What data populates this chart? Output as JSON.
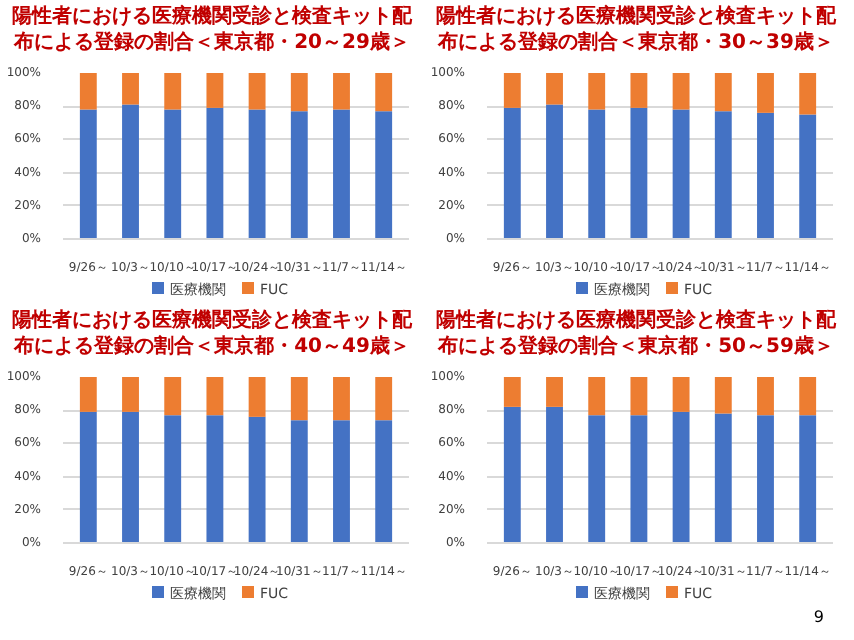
{
  "chart_data": [
    {
      "type": "bar",
      "title": "陽性者における医療機関受診と検査キット配布による登録の割合＜東京都・20～29歳＞",
      "stacked": true,
      "categories": [
        "9/26～",
        "10/3～",
        "10/10～",
        "10/17～",
        "10/24～",
        "10/31～",
        "11/7～",
        "11/14～"
      ],
      "series": [
        {
          "name": "医療機関",
          "color": "#4472c4",
          "values": [
            78,
            81,
            78,
            79,
            78,
            77,
            78,
            77
          ]
        },
        {
          "name": "FUC",
          "color": "#ed7d31",
          "values": [
            22,
            19,
            22,
            21,
            22,
            23,
            22,
            23
          ]
        }
      ],
      "ylim": [
        0,
        100
      ],
      "yticks": [
        {
          "value": 0,
          "label": "0%"
        },
        {
          "value": 20,
          "label": "20%"
        },
        {
          "value": 40,
          "label": "40%"
        },
        {
          "value": 60,
          "label": "60%"
        },
        {
          "value": 80,
          "label": "80%"
        },
        {
          "value": 100,
          "label": "100%"
        }
      ],
      "grid": "y",
      "legend": "bottom"
    },
    {
      "type": "bar",
      "title": "陽性者における医療機関受診と検査キット配布による登録の割合＜東京都・30～39歳＞",
      "stacked": true,
      "categories": [
        "9/26～",
        "10/3～",
        "10/10～",
        "10/17～",
        "10/24～",
        "10/31～",
        "11/7～",
        "11/14～"
      ],
      "series": [
        {
          "name": "医療機関",
          "color": "#4472c4",
          "values": [
            79,
            81,
            78,
            79,
            78,
            77,
            76,
            75
          ]
        },
        {
          "name": "FUC",
          "color": "#ed7d31",
          "values": [
            21,
            19,
            22,
            21,
            22,
            23,
            24,
            25
          ]
        }
      ],
      "ylim": [
        0,
        100
      ],
      "yticks": [
        {
          "value": 0,
          "label": "0%"
        },
        {
          "value": 20,
          "label": "20%"
        },
        {
          "value": 40,
          "label": "40%"
        },
        {
          "value": 60,
          "label": "60%"
        },
        {
          "value": 80,
          "label": "80%"
        },
        {
          "value": 100,
          "label": "100%"
        }
      ],
      "grid": "y",
      "legend": "bottom"
    },
    {
      "type": "bar",
      "title": "陽性者における医療機関受診と検査キット配布による登録の割合＜東京都・40～49歳＞",
      "stacked": true,
      "categories": [
        "9/26～",
        "10/3～",
        "10/10～",
        "10/17～",
        "10/24～",
        "10/31～",
        "11/7～",
        "11/14～"
      ],
      "series": [
        {
          "name": "医療機関",
          "color": "#4472c4",
          "values": [
            79,
            79,
            77,
            77,
            76,
            74,
            74,
            74
          ]
        },
        {
          "name": "FUC",
          "color": "#ed7d31",
          "values": [
            21,
            21,
            23,
            23,
            24,
            26,
            26,
            26
          ]
        }
      ],
      "ylim": [
        0,
        100
      ],
      "yticks": [
        {
          "value": 0,
          "label": "0%"
        },
        {
          "value": 20,
          "label": "20%"
        },
        {
          "value": 40,
          "label": "40%"
        },
        {
          "value": 60,
          "label": "60%"
        },
        {
          "value": 80,
          "label": "80%"
        },
        {
          "value": 100,
          "label": "100%"
        }
      ],
      "grid": "y",
      "legend": "bottom"
    },
    {
      "type": "bar",
      "title": "陽性者における医療機関受診と検査キット配布による登録の割合＜東京都・50～59歳＞",
      "stacked": true,
      "categories": [
        "9/26～",
        "10/3～",
        "10/10～",
        "10/17～",
        "10/24～",
        "10/31～",
        "11/7～",
        "11/14～"
      ],
      "series": [
        {
          "name": "医療機関",
          "color": "#4472c4",
          "values": [
            82,
            82,
            77,
            77,
            79,
            78,
            77,
            77
          ]
        },
        {
          "name": "FUC",
          "color": "#ed7d31",
          "values": [
            18,
            18,
            23,
            23,
            21,
            22,
            23,
            23
          ]
        }
      ],
      "ylim": [
        0,
        100
      ],
      "yticks": [
        {
          "value": 0,
          "label": "0%"
        },
        {
          "value": 20,
          "label": "20%"
        },
        {
          "value": 40,
          "label": "40%"
        },
        {
          "value": 60,
          "label": "60%"
        },
        {
          "value": 80,
          "label": "80%"
        },
        {
          "value": 100,
          "label": "100%"
        }
      ],
      "grid": "y",
      "legend": "bottom",
      "annotations": [
        "9"
      ]
    }
  ]
}
